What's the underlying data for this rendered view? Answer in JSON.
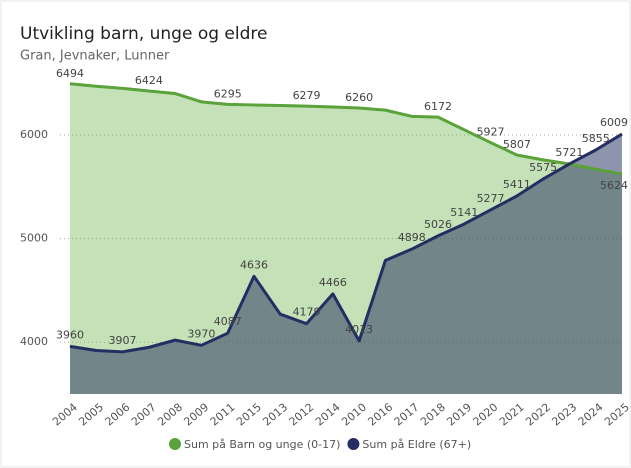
{
  "chart_data": {
    "type": "area",
    "title": "Utvikling barn, unge og eldre",
    "subtitle": "Gran, Jevnaker, Lunner",
    "categories": [
      "2004",
      "2005",
      "2006",
      "2007",
      "2008",
      "2009",
      "2011",
      "2015",
      "2013",
      "2012",
      "2014",
      "2010",
      "2016",
      "2017",
      "2018",
      "2019",
      "2020",
      "2021",
      "2022",
      "2023",
      "2024",
      "2025"
    ],
    "series": [
      {
        "name": "Sum på Barn og unge (0-17)",
        "color": "#5aa23a",
        "values": [
          6494,
          6470,
          6450,
          6424,
          6400,
          6320,
          6295,
          6290,
          6285,
          6279,
          6270,
          6260,
          6240,
          6180,
          6172,
          6050,
          5927,
          5807,
          5760,
          5720,
          5670,
          5624
        ],
        "value_labels": [
          "6494",
          null,
          null,
          "6424",
          null,
          null,
          "6295",
          null,
          null,
          "6279",
          null,
          "6260",
          null,
          null,
          "6172",
          null,
          "5927",
          "5807",
          null,
          null,
          null,
          "5624"
        ]
      },
      {
        "name": "Sum på Eldre (67+)",
        "color": "#252e63",
        "values": [
          3960,
          3920,
          3907,
          3950,
          4020,
          3970,
          4087,
          4636,
          4270,
          4179,
          4466,
          4013,
          4790,
          4898,
          5026,
          5141,
          5277,
          5411,
          5575,
          5721,
          5855,
          6009
        ],
        "value_labels": [
          "3960",
          null,
          "3907",
          null,
          null,
          "3970",
          "4087",
          "4636",
          null,
          "4179",
          "4466",
          "4013",
          null,
          "4898",
          "5026",
          "5141",
          "5277",
          "5411",
          "5575",
          "5721",
          "5855",
          "6009"
        ]
      }
    ],
    "ylim": [
      3500,
      6550
    ],
    "yticks": [
      4000,
      5000,
      6000
    ],
    "grid": true
  }
}
